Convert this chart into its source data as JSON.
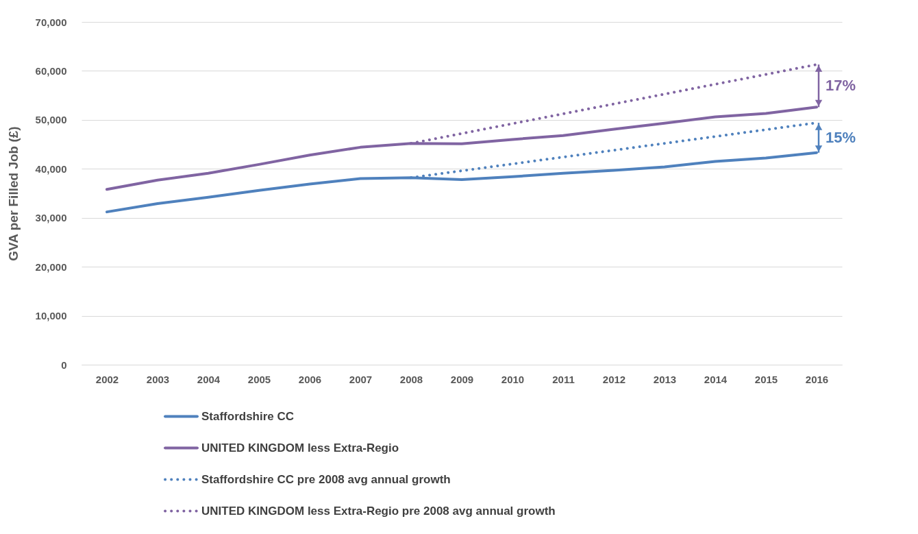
{
  "chart_data": {
    "type": "line",
    "ylabel": "GVA per Filled Job (£)",
    "categories": [
      "2002",
      "2003",
      "2004",
      "2005",
      "2006",
      "2007",
      "2008",
      "2009",
      "2010",
      "2011",
      "2012",
      "2013",
      "2014",
      "2015",
      "2016"
    ],
    "series": [
      {
        "name": "Staffordshire CC",
        "color": "#4f81bd",
        "line_style": "solid",
        "values": [
          31200,
          32900,
          34200,
          35600,
          36900,
          38000,
          38200,
          37800,
          38400,
          39100,
          39700,
          40400,
          41500,
          42200,
          43300
        ]
      },
      {
        "name": "UNITED KINGDOM less Extra-Regio",
        "color": "#8064a2",
        "line_style": "solid",
        "values": [
          35800,
          37700,
          39100,
          40900,
          42800,
          44400,
          45200,
          45100,
          46000,
          46800,
          48100,
          49300,
          50600,
          51300,
          52600
        ]
      },
      {
        "name": "Staffordshire CC pre 2008 avg annual growth",
        "color": "#4f81bd",
        "line_style": "dotted",
        "values": [
          null,
          null,
          null,
          null,
          null,
          null,
          38200,
          null,
          null,
          null,
          null,
          null,
          null,
          null,
          49400
        ]
      },
      {
        "name": "UNITED KINGDOM less Extra-Regio pre 2008 avg annual growth",
        "color": "#8064a2",
        "line_style": "dotted",
        "values": [
          null,
          null,
          null,
          null,
          null,
          null,
          45200,
          null,
          null,
          null,
          null,
          null,
          null,
          null,
          61300
        ]
      }
    ],
    "annotations": [
      "17%",
      "15%"
    ],
    "ylim": [
      0,
      70000
    ],
    "yticks": [
      0,
      {
        "value": 10000,
        "label": "10,000"
      },
      {
        "value": 20000,
        "label": "20,000"
      },
      {
        "value": 30000,
        "label": "30,000"
      },
      {
        "value": 40000,
        "label": "40,000"
      },
      {
        "value": 50000,
        "label": "50,000"
      },
      {
        "value": 60000,
        "label": "60,000"
      },
      {
        "value": 70000,
        "label": "70,000"
      }
    ],
    "grid": "y",
    "legend": "bottom",
    "marker": "none"
  }
}
